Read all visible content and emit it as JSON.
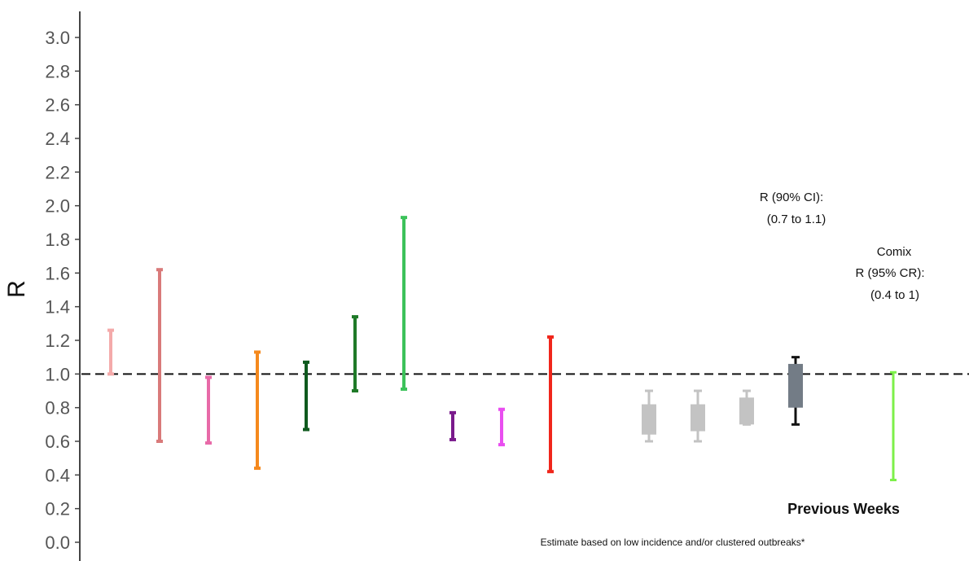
{
  "chart_data": {
    "type": "errorbar",
    "ylabel": "R",
    "ylim": [
      0.0,
      3.0
    ],
    "yticks": [
      "0.0",
      "0.2",
      "0.4",
      "0.6",
      "0.8",
      "1.0",
      "1.2",
      "1.4",
      "1.6",
      "1.8",
      "2.0",
      "2.2",
      "2.4",
      "2.6",
      "2.8",
      "3.0"
    ],
    "reference_line": 1.0,
    "intervals": [
      {
        "low": 1.0,
        "high": 1.26,
        "color": "#f4aaaa"
      },
      {
        "low": 0.6,
        "high": 1.62,
        "color": "#d97a7a"
      },
      {
        "low": 0.59,
        "high": 0.98,
        "color": "#e86aa8"
      },
      {
        "low": 0.44,
        "high": 1.13,
        "color": "#f5891d"
      },
      {
        "low": 0.67,
        "high": 1.07,
        "color": "#0f5a1e"
      },
      {
        "low": 0.9,
        "high": 1.34,
        "color": "#1f7a28"
      },
      {
        "low": 0.91,
        "high": 1.93,
        "color": "#3cc25a"
      },
      {
        "low": 0.61,
        "high": 0.77,
        "color": "#7a1a8c"
      },
      {
        "low": 0.58,
        "high": 0.79,
        "color": "#e94ef0"
      },
      {
        "low": 0.42,
        "high": 1.22,
        "color": "#f0261b"
      }
    ],
    "previous_weeks": [
      {
        "whisker_low": 0.6,
        "whisker_high": 0.9,
        "box_low": 0.64,
        "box_high": 0.82,
        "color": "#c3c3c3"
      },
      {
        "whisker_low": 0.6,
        "whisker_high": 0.9,
        "box_low": 0.66,
        "box_high": 0.82,
        "color": "#c3c3c3"
      },
      {
        "whisker_low": 0.7,
        "whisker_high": 0.9,
        "box_low": 0.7,
        "box_high": 0.86,
        "color": "#c3c3c3"
      },
      {
        "whisker_low": 0.7,
        "whisker_high": 1.1,
        "box_low": 0.8,
        "box_high": 1.06,
        "color": "#737c86",
        "whisker_color": "#111111"
      }
    ],
    "comix_interval": {
      "low": 0.37,
      "high": 1.01,
      "color": "#7df04a"
    },
    "annotations": {
      "current_r_label": "R (90% CI):",
      "current_r_range": "(0.7 to 1.1)",
      "comix_title": "Comix",
      "comix_r_label": "R (95% CR):",
      "comix_r_range": "(0.4 to 1)",
      "previous_weeks": "Previous Weeks",
      "footnote": "Estimate based on low incidence and/or clustered outbreaks*"
    }
  }
}
